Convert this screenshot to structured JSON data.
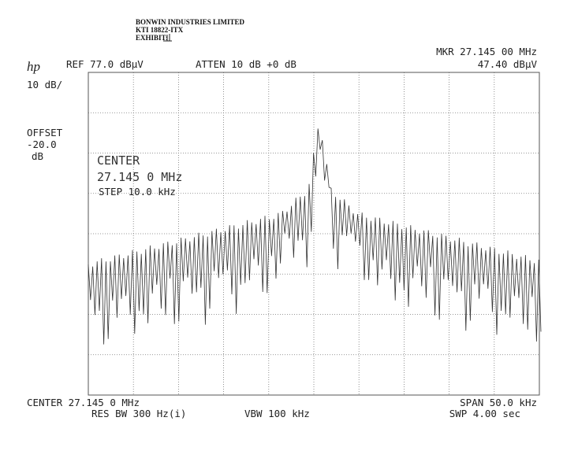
{
  "header": {
    "company": "BONWIN INDUSTRIES LIMITED",
    "reference": "KTI 18822-ITX",
    "exhibit": "EXHIBIT:",
    "logo": "hp"
  },
  "settings": {
    "ref": "REF 77.0 dBµV",
    "atten": "ATTEN 10 dB +0 dB",
    "marker_freq": "MKR 27.145 00 MHz",
    "marker_level": "47.40 dBµV",
    "scale": "10 dB/",
    "offset_label": "OFFSET",
    "offset_value": "-20.0",
    "offset_unit": "dB"
  },
  "overlay": {
    "center_label": "CENTER",
    "center_value": "27.145 0 MHz",
    "step": "STEP 10.0 kHz"
  },
  "footer": {
    "center": "CENTER 27.145 0 MHz",
    "span": "SPAN 50.0 kHz",
    "res_bw": "RES BW 300 Hz(i)",
    "vbw": "VBW 100 kHz",
    "sweep": "SWP 4.00 sec"
  }
}
